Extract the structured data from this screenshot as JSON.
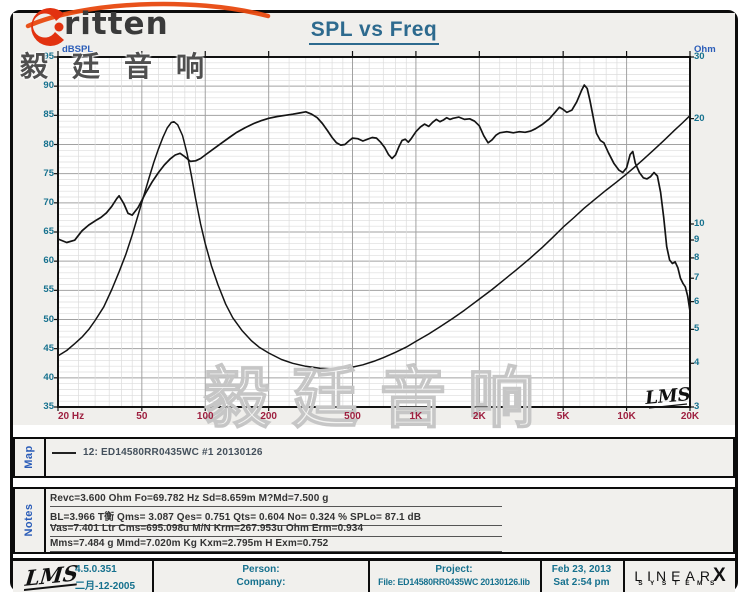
{
  "header": {
    "title": "SPL vs Freq",
    "logo_text": "ritten",
    "logo_cn": "毅廷音响"
  },
  "chart": {
    "left_axis_label": "dBSPL",
    "right_axis_label": "Ohm",
    "left_ticks": [
      95,
      90,
      85,
      80,
      75,
      70,
      65,
      60,
      55,
      50,
      45,
      40,
      35
    ],
    "right_ticks": [
      30,
      20,
      10,
      9,
      8,
      7,
      6,
      5,
      4,
      3
    ],
    "freq_ticks": [
      {
        "label": "20 Hz",
        "f": 20,
        "align": "left"
      },
      {
        "label": "50",
        "f": 50,
        "align": "center"
      },
      {
        "label": "100",
        "f": 100,
        "align": "center"
      },
      {
        "label": "200",
        "f": 200,
        "align": "center"
      },
      {
        "label": "500",
        "f": 500,
        "align": "center"
      },
      {
        "label": "1K",
        "f": 1000,
        "align": "center"
      },
      {
        "label": "2K",
        "f": 2000,
        "align": "center"
      },
      {
        "label": "5K",
        "f": 5000,
        "align": "center"
      },
      {
        "label": "10K",
        "f": 10000,
        "align": "center"
      },
      {
        "label": "20K",
        "f": 20000,
        "align": "center"
      }
    ],
    "watermark": "毅廷音响",
    "signature": "LMS",
    "colors": {
      "tick_teal": "#16718e",
      "axis_blue": "#2a5cb8",
      "freq_maroon": "#9e2040",
      "curve": "#141414",
      "grid_minor": "#dcdcdc",
      "grid_major": "#a2a2a2",
      "panel_bg": "#f0efec"
    },
    "chart_data": {
      "type": "line",
      "title": "SPL vs Freq",
      "x_scale": "log",
      "x_range": [
        20,
        20000
      ],
      "y_left": {
        "label": "dBSPL",
        "range": [
          35,
          95
        ],
        "scale": "linear"
      },
      "y_right": {
        "label": "Ohm",
        "range": [
          3,
          30
        ],
        "scale": "log"
      },
      "grid": true,
      "series": [
        {
          "name": "12: ED14580RR0435WC #1 20130126 (SPL)",
          "axis": "left",
          "points": [
            [
              20,
              63.8
            ],
            [
              22,
              63.2
            ],
            [
              24,
              63.6
            ],
            [
              26,
              65.2
            ],
            [
              28,
              66.2
            ],
            [
              30,
              66.9
            ],
            [
              32,
              67.5
            ],
            [
              34,
              68.3
            ],
            [
              36,
              69.4
            ],
            [
              38,
              70.7
            ],
            [
              39,
              71.2
            ],
            [
              41,
              69.9
            ],
            [
              43,
              68.2
            ],
            [
              45,
              67.9
            ],
            [
              48,
              69.2
            ],
            [
              52,
              71.6
            ],
            [
              56,
              73.6
            ],
            [
              60,
              75.2
            ],
            [
              64,
              76.5
            ],
            [
              68,
              77.5
            ],
            [
              72,
              78.2
            ],
            [
              76,
              78.5
            ],
            [
              80,
              77.9
            ],
            [
              85,
              77.1
            ],
            [
              90,
              77.2
            ],
            [
              95,
              77.6
            ],
            [
              100,
              78.2
            ],
            [
              110,
              79.3
            ],
            [
              120,
              80.3
            ],
            [
              130,
              81.2
            ],
            [
              140,
              82.0
            ],
            [
              155,
              82.9
            ],
            [
              170,
              83.6
            ],
            [
              185,
              84.1
            ],
            [
              200,
              84.5
            ],
            [
              220,
              84.8
            ],
            [
              240,
              85.0
            ],
            [
              260,
              85.2
            ],
            [
              280,
              85.4
            ],
            [
              300,
              85.6
            ],
            [
              320,
              85.2
            ],
            [
              340,
              84.6
            ],
            [
              360,
              83.6
            ],
            [
              380,
              82.4
            ],
            [
              400,
              81.2
            ],
            [
              420,
              80.3
            ],
            [
              440,
              79.9
            ],
            [
              460,
              80.0
            ],
            [
              480,
              80.6
            ],
            [
              500,
              81.1
            ],
            [
              530,
              81.0
            ],
            [
              560,
              80.6
            ],
            [
              590,
              80.9
            ],
            [
              620,
              81.2
            ],
            [
              650,
              81.1
            ],
            [
              680,
              80.4
            ],
            [
              710,
              79.5
            ],
            [
              740,
              78.3
            ],
            [
              770,
              77.6
            ],
            [
              800,
              78.2
            ],
            [
              830,
              79.6
            ],
            [
              860,
              80.7
            ],
            [
              890,
              80.9
            ],
            [
              920,
              80.4
            ],
            [
              950,
              81.0
            ],
            [
              1000,
              82.2
            ],
            [
              1050,
              83.0
            ],
            [
              1100,
              83.5
            ],
            [
              1150,
              83.1
            ],
            [
              1200,
              83.8
            ],
            [
              1250,
              84.3
            ],
            [
              1300,
              83.9
            ],
            [
              1350,
              84.2
            ],
            [
              1400,
              84.6
            ],
            [
              1450,
              84.3
            ],
            [
              1500,
              84.5
            ],
            [
              1600,
              84.7
            ],
            [
              1700,
              84.3
            ],
            [
              1800,
              84.4
            ],
            [
              1900,
              84.0
            ],
            [
              2000,
              83.2
            ],
            [
              2100,
              81.5
            ],
            [
              2200,
              80.3
            ],
            [
              2300,
              80.8
            ],
            [
              2400,
              81.6
            ],
            [
              2500,
              82.0
            ],
            [
              2700,
              82.2
            ],
            [
              2900,
              82.0
            ],
            [
              3100,
              82.2
            ],
            [
              3300,
              82.1
            ],
            [
              3500,
              82.3
            ],
            [
              3700,
              82.7
            ],
            [
              4000,
              83.5
            ],
            [
              4300,
              84.4
            ],
            [
              4600,
              85.6
            ],
            [
              4800,
              86.4
            ],
            [
              5000,
              86.0
            ],
            [
              5200,
              85.5
            ],
            [
              5500,
              85.9
            ],
            [
              5800,
              87.3
            ],
            [
              6100,
              89.2
            ],
            [
              6300,
              90.2
            ],
            [
              6500,
              89.6
            ],
            [
              6700,
              87.6
            ],
            [
              7000,
              84.0
            ],
            [
              7200,
              81.9
            ],
            [
              7500,
              80.7
            ],
            [
              7800,
              80.3
            ],
            [
              8200,
              78.6
            ],
            [
              8700,
              76.8
            ],
            [
              9200,
              75.6
            ],
            [
              9600,
              75.2
            ],
            [
              10000,
              76.0
            ],
            [
              10400,
              78.3
            ],
            [
              10700,
              78.8
            ],
            [
              11000,
              76.8
            ],
            [
              11500,
              75.2
            ],
            [
              12000,
              74.3
            ],
            [
              12500,
              74.1
            ],
            [
              13000,
              74.5
            ],
            [
              13500,
              75.2
            ],
            [
              14000,
              74.6
            ],
            [
              14500,
              71.8
            ],
            [
              15000,
              67.5
            ],
            [
              15500,
              62.5
            ],
            [
              16000,
              60.2
            ],
            [
              16500,
              59.6
            ],
            [
              17000,
              59.9
            ],
            [
              17500,
              58.9
            ],
            [
              18000,
              57.1
            ],
            [
              18500,
              56.2
            ],
            [
              19000,
              55.6
            ],
            [
              19500,
              54.0
            ],
            [
              20000,
              51.4
            ]
          ]
        },
        {
          "name": "12: ED14580RR0435WC #1 20130126 (Impedance)",
          "axis": "right",
          "points": [
            [
              20,
              4.2
            ],
            [
              22,
              4.35
            ],
            [
              24,
              4.55
            ],
            [
              26,
              4.75
            ],
            [
              28,
              5.0
            ],
            [
              30,
              5.3
            ],
            [
              33,
              5.8
            ],
            [
              36,
              6.5
            ],
            [
              39,
              7.3
            ],
            [
              42,
              8.2
            ],
            [
              45,
              9.3
            ],
            [
              48,
              10.6
            ],
            [
              51,
              12.0
            ],
            [
              54,
              13.5
            ],
            [
              57,
              15.0
            ],
            [
              60,
              16.4
            ],
            [
              63,
              17.7
            ],
            [
              66,
              18.8
            ],
            [
              69,
              19.5
            ],
            [
              71,
              19.6
            ],
            [
              74,
              19.2
            ],
            [
              78,
              17.9
            ],
            [
              82,
              15.9
            ],
            [
              86,
              13.7
            ],
            [
              90,
              11.8
            ],
            [
              95,
              10.0
            ],
            [
              100,
              8.8
            ],
            [
              107,
              7.6
            ],
            [
              115,
              6.7
            ],
            [
              125,
              5.9
            ],
            [
              135,
              5.4
            ],
            [
              150,
              4.95
            ],
            [
              165,
              4.65
            ],
            [
              180,
              4.45
            ],
            [
              200,
              4.28
            ],
            [
              230,
              4.1
            ],
            [
              260,
              4.0
            ],
            [
              300,
              3.92
            ],
            [
              350,
              3.87
            ],
            [
              400,
              3.86
            ],
            [
              450,
              3.87
            ],
            [
              500,
              3.9
            ],
            [
              560,
              3.96
            ],
            [
              630,
              4.05
            ],
            [
              700,
              4.15
            ],
            [
              800,
              4.3
            ],
            [
              900,
              4.45
            ],
            [
              1000,
              4.62
            ],
            [
              1150,
              4.85
            ],
            [
              1300,
              5.08
            ],
            [
              1500,
              5.38
            ],
            [
              1700,
              5.67
            ],
            [
              2000,
              6.1
            ],
            [
              2300,
              6.5
            ],
            [
              2600,
              6.9
            ],
            [
              3000,
              7.4
            ],
            [
              3500,
              8.0
            ],
            [
              4000,
              8.6
            ],
            [
              4500,
              9.2
            ],
            [
              5000,
              9.8
            ],
            [
              5600,
              10.4
            ],
            [
              6300,
              11.1
            ],
            [
              7000,
              11.7
            ],
            [
              8000,
              12.5
            ],
            [
              9000,
              13.2
            ],
            [
              10000,
              13.9
            ],
            [
              11000,
              14.6
            ],
            [
              12000,
              15.3
            ],
            [
              13500,
              16.3
            ],
            [
              15000,
              17.3
            ],
            [
              17000,
              18.6
            ],
            [
              18500,
              19.5
            ],
            [
              20000,
              20.4
            ]
          ]
        }
      ]
    }
  },
  "map": {
    "label": "Map",
    "legend": "12: ED14580RR0435WC #1 20130126"
  },
  "notes": {
    "label": "Notes",
    "lines": [
      "Revc=3.600 Ohm  Fo=69.782 Hz  Sd=8.659m M?Md=7.500 g",
      "BL=3.966 T衡  Qms= 3.087  Qes= 0.751  Qts= 0.604  No= 0.324 %  SPLo= 87.1 dB",
      "Vas=7.401 Ltr  Cms=695.098u M/N  Krm=267.953u Ohm  Erm=0.934",
      "Mms=7.484 g  Mmd=7.020m Kg  Kxm=2.795m H  Exm=0.752"
    ]
  },
  "footer": {
    "lms_logo": "LMS",
    "version": "4.5.0.351",
    "build_date": "二月-12-2005",
    "person_label": "Person:",
    "company_label": "Company:",
    "project_label": "Project:",
    "file_label": "File: ED14580RR0435WC 20130126.lib",
    "date": "Feb 23, 2013",
    "time": "Sat  2:54 pm",
    "brand": "LINEAR",
    "brand_x": "X",
    "brand_sub": "SYSTEMS"
  }
}
